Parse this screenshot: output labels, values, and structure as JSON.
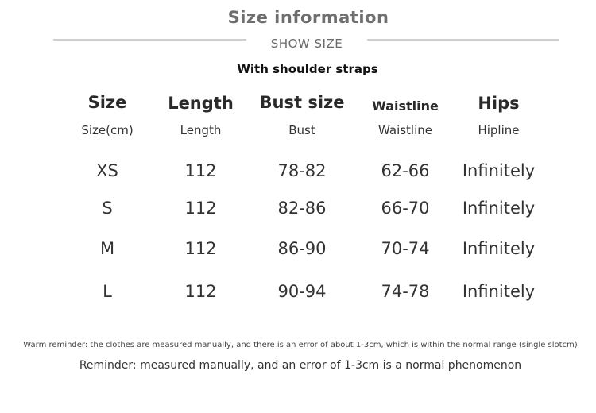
{
  "header": {
    "title": "Size information",
    "subtitle": "SHOW SIZE",
    "variant": "With shoulder straps"
  },
  "table": {
    "columns": [
      {
        "title": "Size",
        "subtitle": "Size(cm)"
      },
      {
        "title": "Length",
        "subtitle": "Length"
      },
      {
        "title": "Bust size",
        "subtitle": "Bust"
      },
      {
        "title": "Waistline",
        "subtitle": "Waistline"
      },
      {
        "title": "Hips",
        "subtitle": "Hipline"
      }
    ],
    "rows": [
      [
        "XS",
        "112",
        "78-82",
        "62-66",
        "Infinitely"
      ],
      [
        "S",
        "112",
        "82-86",
        "66-70",
        "Infinitely"
      ],
      [
        "M",
        "112",
        "86-90",
        "70-74",
        "Infinitely"
      ],
      [
        "L",
        "112",
        "90-94",
        "74-78",
        "Infinitely"
      ]
    ]
  },
  "notes": {
    "warm_reminder": "Warm reminder: the clothes are measured manually, and there is an error of about 1-3cm, which is within the normal range (single slotcm)",
    "reminder": "Reminder:  measured manually, and an error of 1-3cm is a normal phenomenon"
  }
}
